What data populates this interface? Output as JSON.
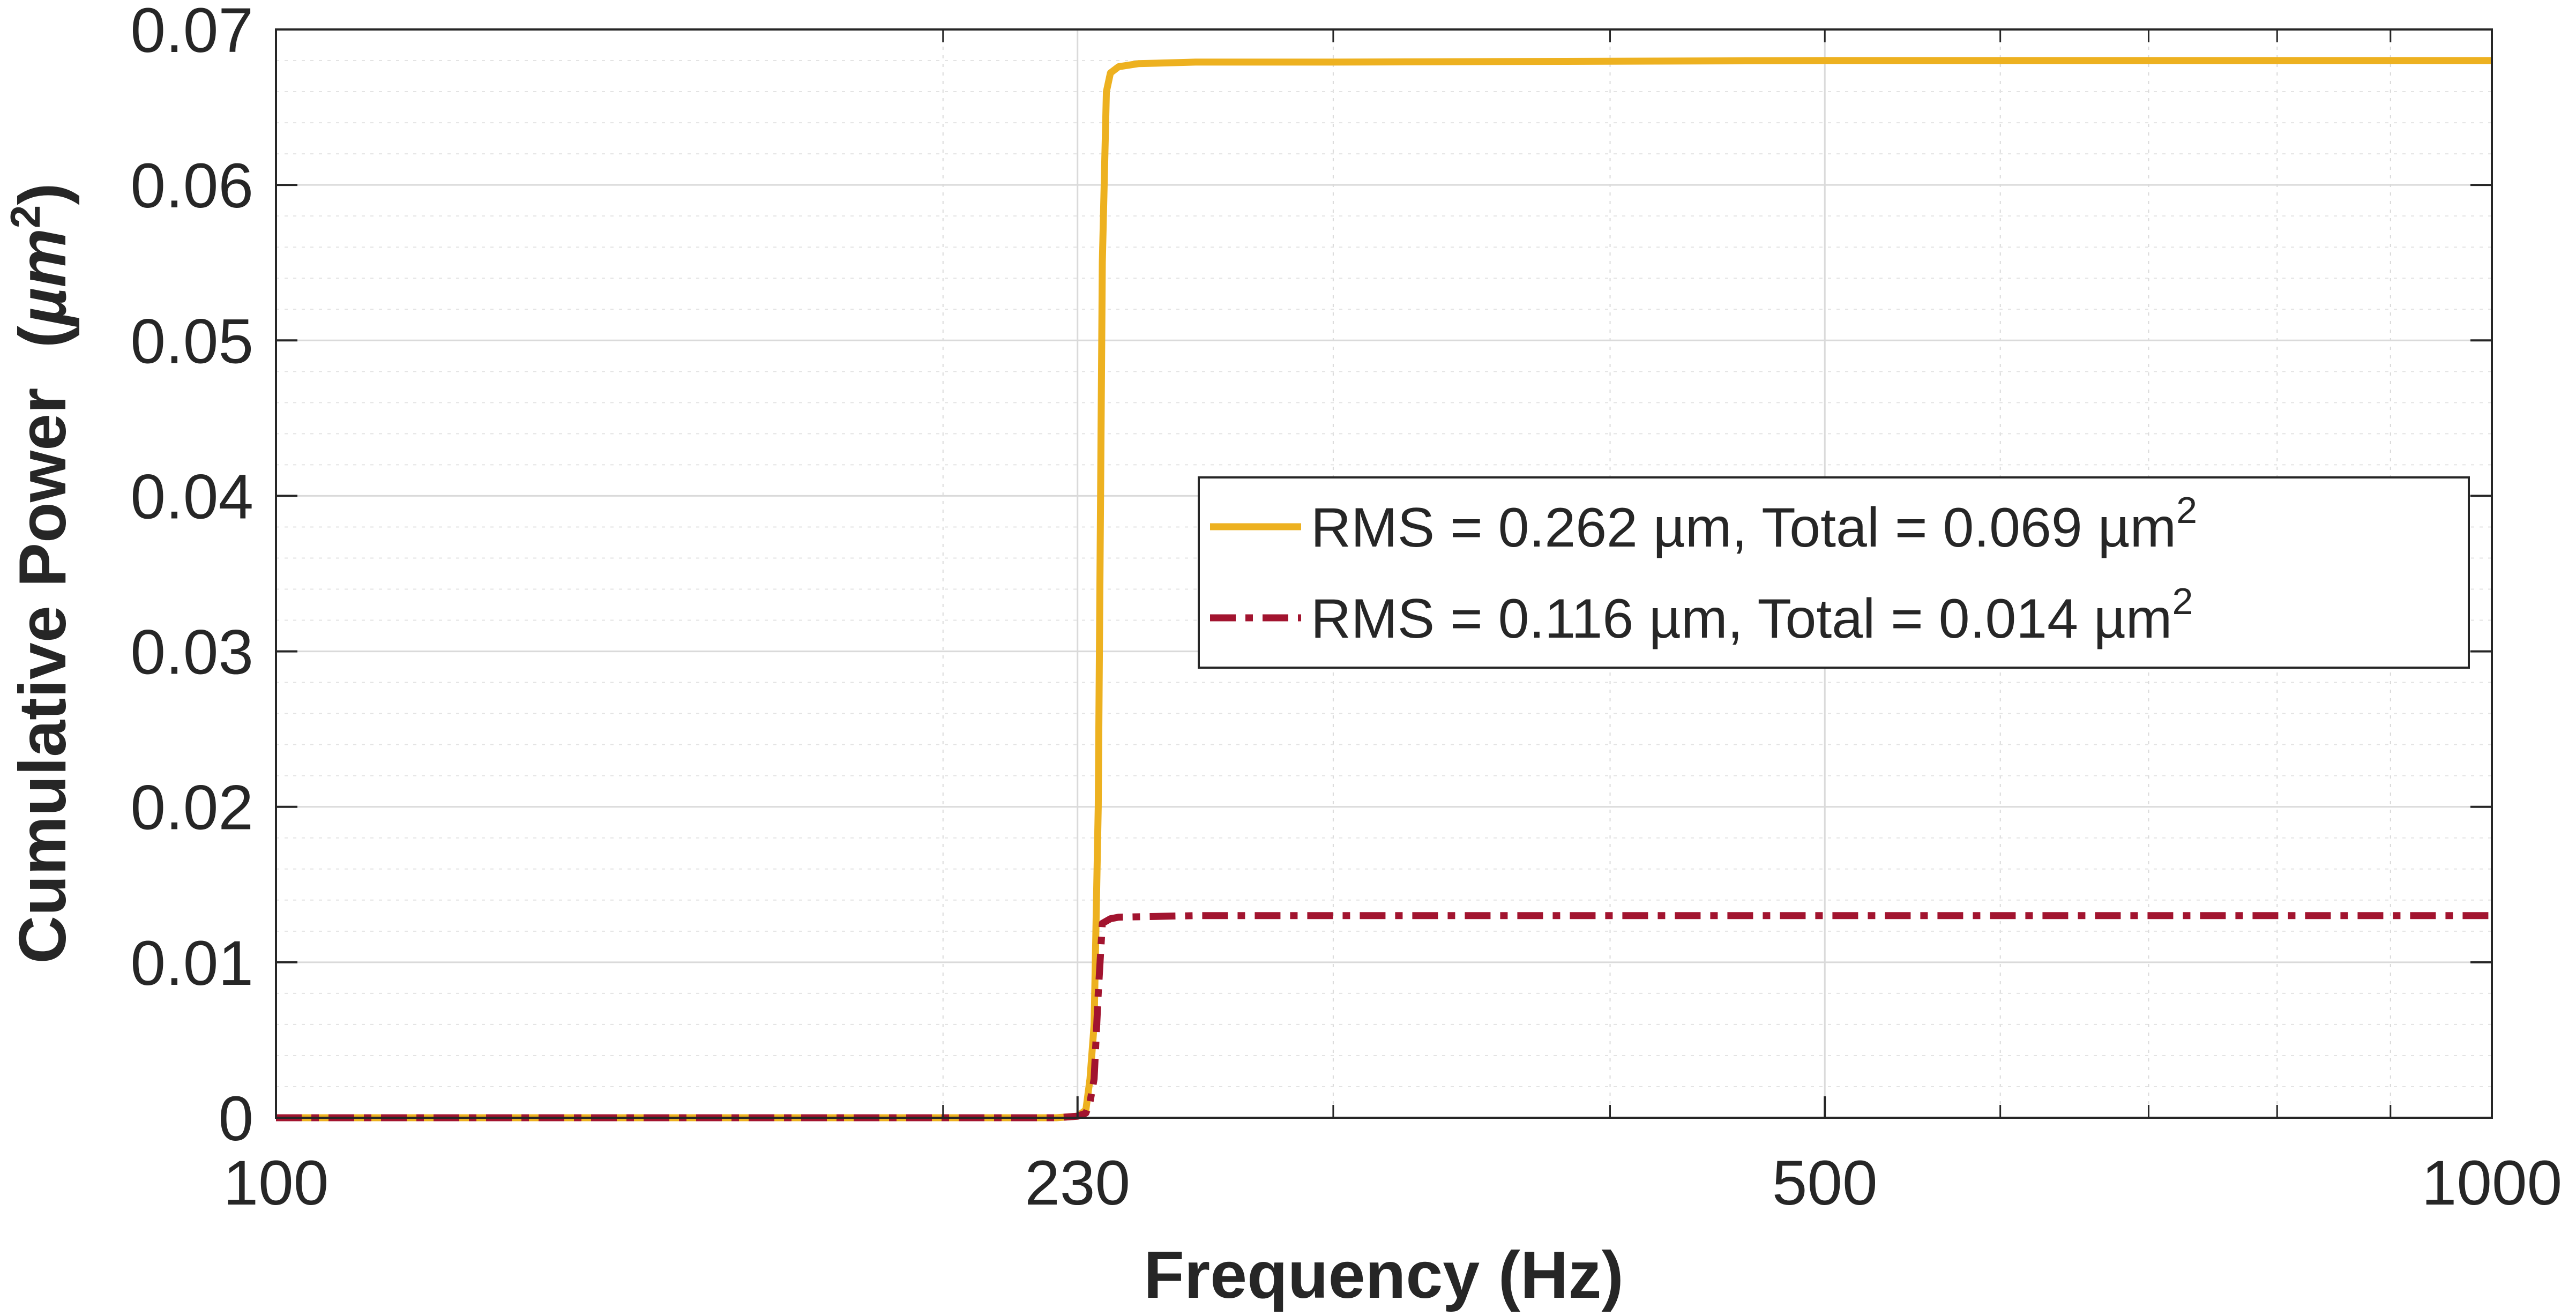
{
  "chart_data": {
    "type": "line",
    "xlabel": "Frequency (Hz)",
    "ylabel": "Cumulative Power (µm²)",
    "ylabel_main": "Cumulative Power",
    "ylabel_unit_open": "(",
    "ylabel_unit_mu": "µm",
    "ylabel_unit_sup": "2",
    "ylabel_unit_close": ")",
    "x_scale": "log",
    "xlim": [
      100,
      1000
    ],
    "ylim": [
      0,
      0.07
    ],
    "x_ticks": [
      100,
      230,
      500,
      1000
    ],
    "x_tick_labels": [
      "100",
      "230",
      "500",
      "1000"
    ],
    "y_ticks": [
      0,
      0.01,
      0.02,
      0.03,
      0.04,
      0.05,
      0.06,
      0.07
    ],
    "y_tick_labels": [
      "0",
      "0.01",
      "0.02",
      "0.03",
      "0.04",
      "0.05",
      "0.06",
      "0.07"
    ],
    "grid": true,
    "minor_grid": true,
    "legend_position": "center-right",
    "series": [
      {
        "name": "RMS = 0.262 µm, Total = 0.069 µm",
        "name_sup": "2",
        "color": "#EDB120",
        "line_style": "solid",
        "x": [
          100,
          150,
          200,
          225,
          230,
          232,
          233,
          234,
          235,
          236,
          237,
          238,
          240,
          245,
          260,
          300,
          500,
          1000
        ],
        "y": [
          0,
          0,
          0,
          0,
          0.0001,
          0.0005,
          0.0025,
          0.006,
          0.02,
          0.055,
          0.066,
          0.0672,
          0.0676,
          0.0678,
          0.0679,
          0.0679,
          0.068,
          0.068
        ]
      },
      {
        "name": "RMS = 0.116 µm, Total = 0.014 µm",
        "name_sup": "2",
        "color": "#A2142F",
        "line_style": "dashdot",
        "x": [
          100,
          150,
          200,
          225,
          230,
          232,
          233,
          234,
          235,
          236,
          238,
          240,
          260,
          300,
          500,
          1000
        ],
        "y": [
          0,
          0,
          0,
          0,
          0.0001,
          0.0003,
          0.001,
          0.0025,
          0.008,
          0.0125,
          0.0128,
          0.0129,
          0.013,
          0.013,
          0.013,
          0.013
        ]
      }
    ]
  }
}
